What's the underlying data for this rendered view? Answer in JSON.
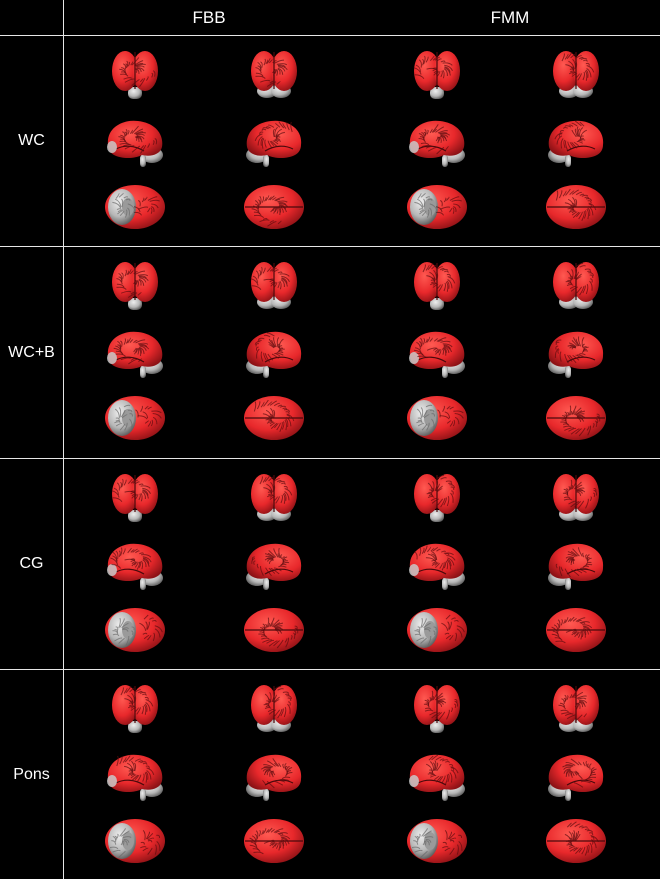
{
  "columns": [
    "FBB",
    "FMM"
  ],
  "rows": [
    {
      "label": "WC"
    },
    {
      "label": "WC+B"
    },
    {
      "label": "CG"
    },
    {
      "label": "Pons"
    }
  ],
  "views": [
    "front",
    "side",
    "top"
  ],
  "colors": {
    "background": "#000000",
    "grid": "#e6e6e6",
    "cortex": "#e8282b",
    "cortex_dark": "#8d1216",
    "gray_tissue": "#b7b7b7"
  }
}
